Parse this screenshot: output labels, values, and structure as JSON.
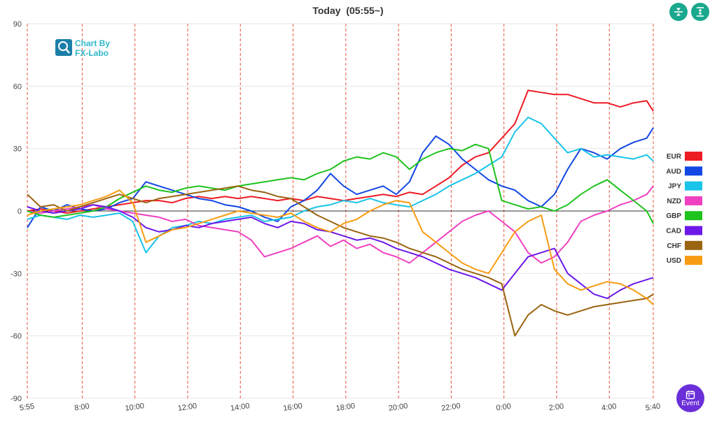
{
  "chart_data": {
    "type": "line",
    "title": "Today  (05:55~)",
    "ylim": [
      -90,
      90
    ],
    "yticks": [
      90,
      60,
      30,
      0,
      -30,
      -60,
      -90
    ],
    "xticks": [
      "5:55",
      "8:00",
      "10:00",
      "12:00",
      "14:00",
      "16:00",
      "18:00",
      "20:00",
      "22:00",
      "0:00",
      "2:00",
      "4:00",
      "5:40"
    ],
    "x": [
      "5:55",
      "6:25",
      "6:55",
      "7:25",
      "7:55",
      "8:25",
      "8:55",
      "9:25",
      "9:55",
      "10:25",
      "10:55",
      "11:25",
      "11:55",
      "12:25",
      "12:55",
      "13:25",
      "13:55",
      "14:25",
      "14:55",
      "15:25",
      "15:55",
      "16:25",
      "16:55",
      "17:25",
      "17:55",
      "18:25",
      "18:55",
      "19:25",
      "19:55",
      "20:25",
      "20:55",
      "21:25",
      "21:55",
      "22:25",
      "22:55",
      "23:25",
      "23:55",
      "0:25",
      "0:55",
      "1:25",
      "1:55",
      "2:25",
      "2:55",
      "3:25",
      "3:55",
      "4:25",
      "4:55",
      "5:25",
      "5:40"
    ],
    "series": [
      {
        "name": "EUR",
        "color": "#ee1c25",
        "values": [
          0,
          1,
          0,
          -1,
          0,
          1,
          2,
          3,
          4,
          5,
          5,
          4,
          6,
          7,
          6,
          7,
          6,
          7,
          6,
          5,
          6,
          5,
          7,
          6,
          5,
          6,
          7,
          8,
          7,
          9,
          8,
          12,
          16,
          22,
          26,
          28,
          35,
          42,
          58,
          57,
          56,
          56,
          54,
          52,
          52,
          50,
          52,
          53,
          48
        ]
      },
      {
        "name": "AUD",
        "color": "#1247e3",
        "values": [
          -8,
          2,
          0,
          3,
          1,
          0,
          1,
          4,
          6,
          14,
          12,
          10,
          8,
          6,
          5,
          3,
          2,
          0,
          -3,
          -5,
          2,
          5,
          10,
          18,
          12,
          8,
          10,
          12,
          8,
          14,
          28,
          36,
          32,
          25,
          20,
          15,
          12,
          10,
          5,
          2,
          8,
          20,
          30,
          28,
          25,
          30,
          33,
          35,
          40
        ]
      },
      {
        "name": "JPY",
        "color": "#19c4e8",
        "values": [
          -4,
          -2,
          -3,
          -4,
          -2,
          -3,
          -2,
          -1,
          -5,
          -20,
          -12,
          -8,
          -7,
          -5,
          -6,
          -4,
          -3,
          -2,
          -5,
          -4,
          -3,
          0,
          2,
          3,
          5,
          4,
          6,
          4,
          3,
          2,
          5,
          8,
          12,
          15,
          18,
          22,
          26,
          38,
          45,
          42,
          35,
          28,
          30,
          26,
          27,
          26,
          25,
          27,
          24
        ]
      },
      {
        "name": "NZD",
        "color": "#f040c0",
        "values": [
          0,
          -1,
          0,
          1,
          2,
          3,
          1,
          0,
          -1,
          -2,
          -3,
          -5,
          -4,
          -7,
          -8,
          -9,
          -10,
          -14,
          -22,
          -20,
          -18,
          -15,
          -12,
          -17,
          -14,
          -18,
          -16,
          -20,
          -22,
          -25,
          -20,
          -15,
          -10,
          -5,
          -2,
          0,
          -5,
          -10,
          -20,
          -25,
          -22,
          -15,
          -5,
          -2,
          0,
          3,
          5,
          8,
          12
        ]
      },
      {
        "name": "GBP",
        "color": "#1ec31e",
        "values": [
          0,
          -2,
          -3,
          -2,
          -1,
          0,
          2,
          6,
          9,
          12,
          10,
          9,
          11,
          12,
          11,
          10,
          12,
          13,
          14,
          15,
          16,
          15,
          18,
          20,
          24,
          26,
          25,
          28,
          26,
          20,
          25,
          28,
          30,
          29,
          32,
          30,
          5,
          3,
          1,
          2,
          0,
          3,
          8,
          12,
          15,
          10,
          5,
          0,
          -6
        ]
      },
      {
        "name": "CAD",
        "color": "#6b18e8",
        "values": [
          2,
          0,
          -1,
          0,
          1,
          3,
          2,
          0,
          -3,
          -8,
          -10,
          -9,
          -7,
          -8,
          -6,
          -5,
          -4,
          -3,
          -6,
          -8,
          -5,
          -6,
          -9,
          -10,
          -12,
          -14,
          -13,
          -15,
          -18,
          -20,
          -22,
          -25,
          -28,
          -30,
          -32,
          -35,
          -38,
          -30,
          -22,
          -20,
          -18,
          -30,
          -35,
          -40,
          -42,
          -38,
          -35,
          -33,
          -32
        ]
      },
      {
        "name": "CHF",
        "color": "#9a6410",
        "values": [
          8,
          2,
          3,
          0,
          2,
          4,
          6,
          8,
          6,
          4,
          6,
          7,
          8,
          9,
          10,
          11,
          12,
          10,
          9,
          7,
          6,
          2,
          -2,
          -5,
          -8,
          -10,
          -12,
          -13,
          -15,
          -18,
          -20,
          -22,
          -25,
          -28,
          -30,
          -32,
          -35,
          -60,
          -50,
          -45,
          -48,
          -50,
          -48,
          -46,
          -45,
          -44,
          -43,
          -42,
          -40
        ]
      },
      {
        "name": "USD",
        "color": "#f79c12",
        "values": [
          -2,
          0,
          1,
          2,
          3,
          5,
          7,
          10,
          4,
          -15,
          -12,
          -9,
          -8,
          -6,
          -4,
          -2,
          0,
          -1,
          -2,
          -3,
          -1,
          -5,
          -8,
          -10,
          -6,
          -4,
          0,
          3,
          5,
          4,
          -10,
          -15,
          -20,
          -25,
          -28,
          -30,
          -20,
          -10,
          -5,
          -2,
          -28,
          -35,
          -38,
          -36,
          -34,
          -35,
          -38,
          -42,
          -45
        ]
      }
    ]
  },
  "logo": {
    "line1": "Chart By",
    "line2": "FX-Labo"
  },
  "buttons": {
    "event_label": "Event"
  }
}
